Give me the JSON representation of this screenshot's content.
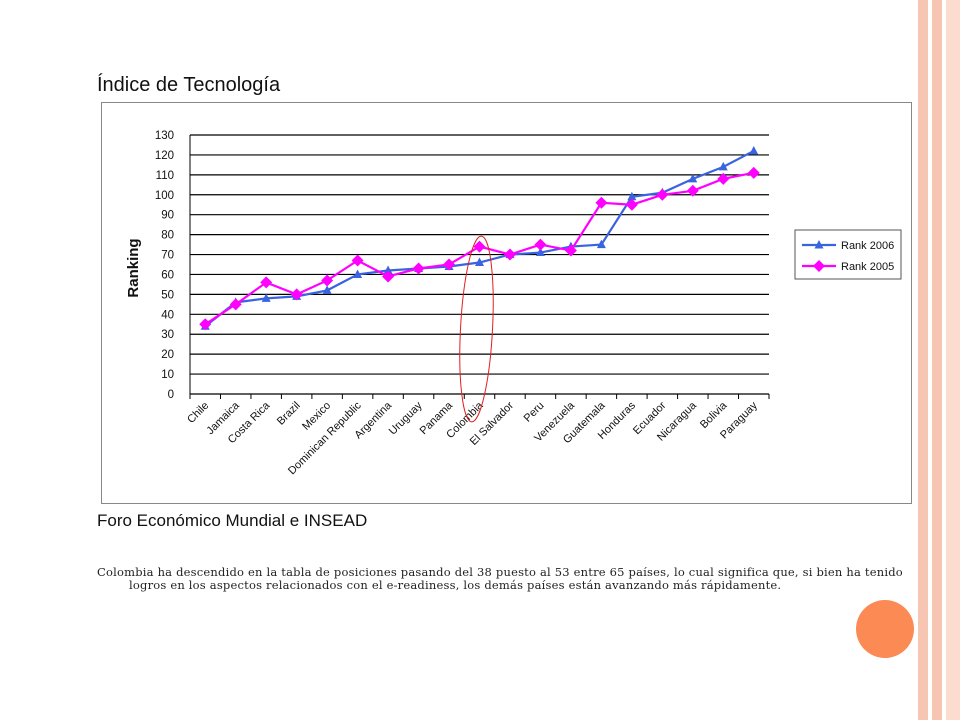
{
  "slide": {
    "title": "Índice de Tecnología",
    "source": "Foro Económico Mundial e INSEAD",
    "body": "Colombia ha descendido en la tabla de posiciones pasando del 38 puesto al 53 entre 65 países, lo cual significa que, si bien ha tenido logros en los aspectos relacionados con el e-readiness, los demás países están avanzando más rápidamente."
  },
  "colors": {
    "border_outer": "#f6c6b3",
    "border_inner": "#fbdccf",
    "orb": "#fb8a55",
    "rank2006": "#3a63e0",
    "rank2005": "#ff00ff",
    "annotation_ellipse": "#e02020"
  },
  "chart_data": {
    "type": "line",
    "ylabel": "Ranking",
    "xlabel": "",
    "ylim": [
      0,
      130
    ],
    "yticks": [
      0,
      10,
      20,
      30,
      40,
      50,
      60,
      70,
      80,
      90,
      100,
      110,
      120,
      130
    ],
    "grid": true,
    "legend_position": "right",
    "categories": [
      "Chile",
      "Jamaica",
      "Costa Rica",
      "Brazil",
      "Mexico",
      "Dominican Republic",
      "Argentina",
      "Uruguay",
      "Panama",
      "Colombia",
      "El Salvador",
      "Peru",
      "Venezuela",
      "Guatemala",
      "Honduras",
      "Ecuador",
      "Nicaragua",
      "Bolivia",
      "Paraguay"
    ],
    "series": [
      {
        "name": "Rank 2006",
        "marker": "triangle",
        "values": [
          34,
          46,
          48,
          49,
          52,
          60,
          62,
          63,
          64,
          66,
          70,
          71,
          74,
          75,
          99,
          101,
          108,
          114,
          122
        ]
      },
      {
        "name": "Rank 2005",
        "marker": "diamond",
        "values": [
          35,
          45,
          56,
          50,
          57,
          67,
          59,
          63,
          65,
          74,
          70,
          75,
          72,
          96,
          95,
          100,
          102,
          108,
          111
        ]
      }
    ],
    "annotation": {
      "type": "ellipse",
      "category": "Colombia"
    }
  }
}
